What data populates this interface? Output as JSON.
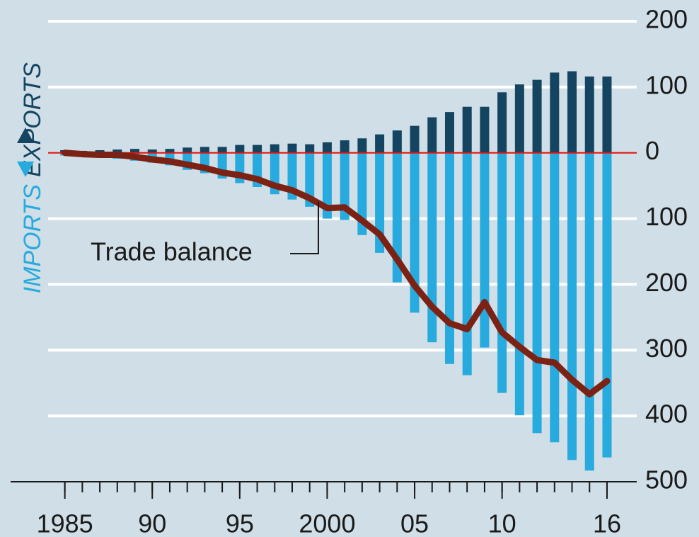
{
  "chart_data": {
    "type": "bar",
    "x": [
      1985,
      1986,
      1987,
      1988,
      1989,
      1990,
      1991,
      1992,
      1993,
      1994,
      1995,
      1996,
      1997,
      1998,
      1999,
      2000,
      2001,
      2002,
      2003,
      2004,
      2005,
      2006,
      2007,
      2008,
      2009,
      2010,
      2011,
      2012,
      2013,
      2014,
      2015,
      2016
    ],
    "series": [
      {
        "name": "EXPORTS",
        "type": "bar",
        "color": "#14445f",
        "values": [
          4,
          3,
          4,
          5,
          6,
          5,
          6,
          8,
          9,
          9,
          12,
          12,
          13,
          14,
          13,
          16,
          19,
          22,
          28,
          34,
          41,
          54,
          62,
          70,
          70,
          92,
          104,
          111,
          122,
          124,
          116,
          116
        ]
      },
      {
        "name": "IMPORTS",
        "type": "bar",
        "color": "#27aadd",
        "values": [
          -4,
          -5,
          -6,
          -9,
          -12,
          -15,
          -19,
          -26,
          -31,
          -39,
          -46,
          -52,
          -63,
          -71,
          -82,
          -100,
          -102,
          -125,
          -152,
          -197,
          -243,
          -288,
          -321,
          -338,
          -296,
          -365,
          -399,
          -426,
          -440,
          -467,
          -483,
          -463
        ]
      },
      {
        "name": "Trade balance",
        "type": "line",
        "color": "#7b2214",
        "values": [
          0,
          -2,
          -3,
          -3,
          -6,
          -10,
          -13,
          -18,
          -23,
          -30,
          -34,
          -40,
          -50,
          -57,
          -69,
          -84,
          -83,
          -103,
          -124,
          -162,
          -202,
          -234,
          -259,
          -268,
          -227,
          -273,
          -295,
          -315,
          -319,
          -345,
          -367,
          -347
        ]
      }
    ],
    "xlim": [
      1981.9,
      2017.7
    ],
    "xticks": [
      1985,
      {
        "value": 1990,
        "label": "90"
      },
      {
        "value": 1995,
        "label": "95"
      },
      2000,
      {
        "value": 2005,
        "label": "05"
      },
      {
        "value": 2010,
        "label": "10"
      },
      {
        "value": 2016,
        "label": "16"
      }
    ],
    "ylim": [
      -500,
      200
    ],
    "yticks": [
      200,
      100,
      0,
      {
        "value": -100,
        "label": "100"
      },
      {
        "value": -200,
        "label": "200"
      },
      {
        "value": -300,
        "label": "300"
      },
      {
        "value": -400,
        "label": "400"
      },
      {
        "value": -500,
        "label": "500"
      }
    ],
    "grid": true
  }
}
